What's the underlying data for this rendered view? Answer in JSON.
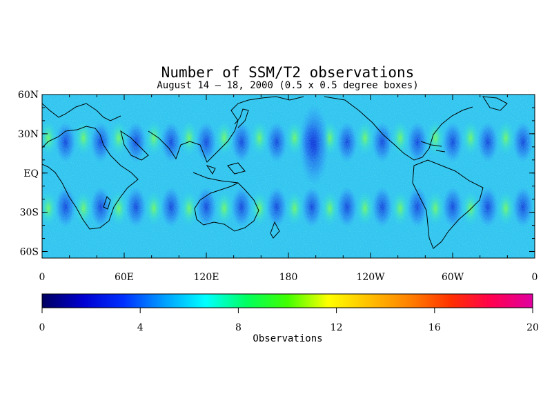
{
  "title": "Number of SSM/T2 observations",
  "subtitle": "August 14 – 18, 2000 (0.5 x 0.5 degree boxes)",
  "map": {
    "lat_ticks": [
      {
        "label": "60N",
        "value": 60
      },
      {
        "label": "30N",
        "value": 30
      },
      {
        "label": "EQ",
        "value": 0
      },
      {
        "label": "30S",
        "value": -30
      },
      {
        "label": "60S",
        "value": -60
      }
    ],
    "lon_ticks": [
      {
        "label": "0",
        "value": 0
      },
      {
        "label": "60E",
        "value": 60
      },
      {
        "label": "120E",
        "value": 120
      },
      {
        "label": "180",
        "value": 180
      },
      {
        "label": "120W",
        "value": 240
      },
      {
        "label": "60W",
        "value": 300
      },
      {
        "label": "0",
        "value": 360
      }
    ],
    "lat_range": [
      -65,
      60
    ],
    "lon_range": [
      0,
      360
    ]
  },
  "colorbar": {
    "label": "Observations",
    "range": [
      0,
      20
    ],
    "ticks": [
      {
        "label": "0",
        "value": 0
      },
      {
        "label": "4",
        "value": 4
      },
      {
        "label": "8",
        "value": 8
      },
      {
        "label": "12",
        "value": 12
      },
      {
        "label": "16",
        "value": 16
      },
      {
        "label": "20",
        "value": 20
      }
    ],
    "colors": [
      "#000060",
      "#0000d0",
      "#0030ff",
      "#00a0ff",
      "#00ffff",
      "#00ff60",
      "#40ff00",
      "#ffff00",
      "#ffc000",
      "#ff8000",
      "#ff3000",
      "#ff0050",
      "#e000a0"
    ]
  }
}
